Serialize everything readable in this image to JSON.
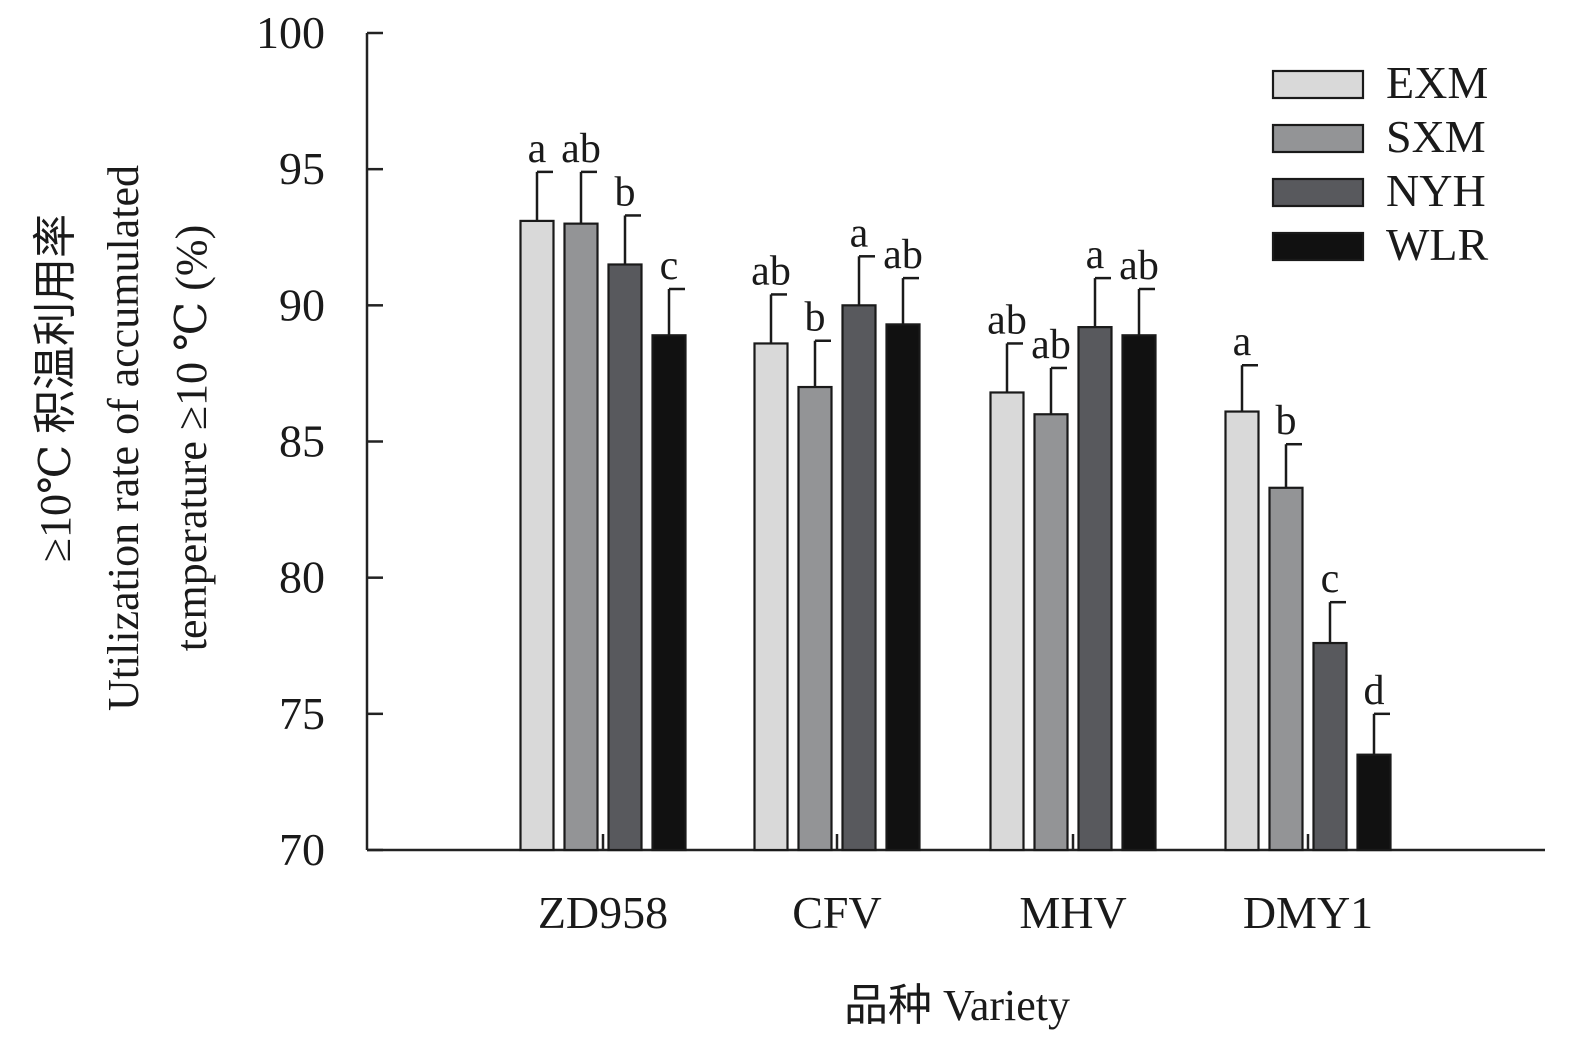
{
  "chart_data": {
    "type": "bar",
    "xlabel": "品种 Variety",
    "ylabel_lines": [
      "≥10℃ 积温利用率",
      "Utilization rate of accumulated",
      "temperature ≥10 ℃ (%)"
    ],
    "ylim": [
      70,
      100
    ],
    "yticks": [
      "70",
      "75",
      "80",
      "85",
      "90",
      "95",
      "100"
    ],
    "categories": [
      "ZD958",
      "CFV",
      "MHV",
      "DMY1"
    ],
    "legend_position": "top-right",
    "series": [
      {
        "name": "EXM",
        "color": "#d9d9d9",
        "values": [
          93.1,
          88.6,
          86.8,
          86.1
        ],
        "errors": [
          1.8,
          1.8,
          1.8,
          1.7
        ],
        "labels": [
          "a",
          "ab",
          "ab",
          "a"
        ]
      },
      {
        "name": "SXM",
        "color": "#939496",
        "values": [
          93.0,
          87.0,
          86.0,
          83.3
        ],
        "errors": [
          1.9,
          1.7,
          1.7,
          1.6
        ],
        "labels": [
          "ab",
          "b",
          "ab",
          "b"
        ]
      },
      {
        "name": "NYH",
        "color": "#58595d",
        "values": [
          91.5,
          90.0,
          89.2,
          77.6
        ],
        "errors": [
          1.8,
          1.8,
          1.8,
          1.5
        ],
        "labels": [
          "b",
          "a",
          "a",
          "c"
        ]
      },
      {
        "name": "WLR",
        "color": "#111111",
        "values": [
          88.9,
          89.3,
          88.9,
          73.5
        ],
        "errors": [
          1.7,
          1.7,
          1.7,
          1.5
        ],
        "labels": [
          "c",
          "ab",
          "ab",
          "d"
        ]
      }
    ]
  }
}
